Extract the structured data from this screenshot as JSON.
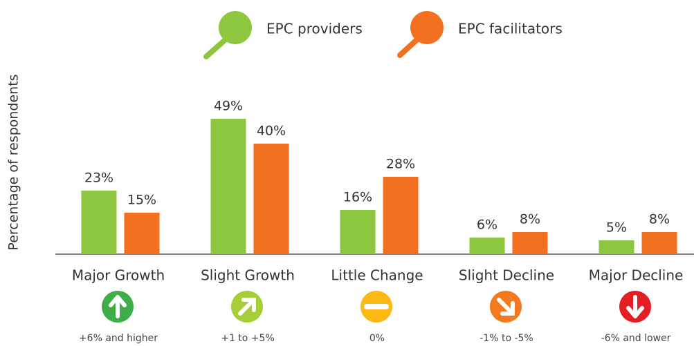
{
  "chart_data": {
    "type": "bar",
    "y_label": "Percentage of respondents",
    "categories": [
      "Major Growth",
      "Slight Growth",
      "Little Change",
      "Slight Decline",
      "Major Decline"
    ],
    "category_notes": [
      "+6% and higher",
      "+1 to +5%",
      "0%",
      "-1% to -5%",
      "-6% and lower"
    ],
    "series": [
      {
        "name": "EPC providers",
        "color": "#8dc63f",
        "values": [
          23,
          49,
          16,
          6,
          5
        ],
        "value_labels": [
          "23%",
          "49%",
          "16%",
          "6%",
          "5%"
        ]
      },
      {
        "name": "EPC facilitators",
        "color": "#f37021",
        "values": [
          15,
          40,
          28,
          8,
          8
        ],
        "value_labels": [
          "15%",
          "40%",
          "28%",
          "8%",
          "8%"
        ]
      }
    ],
    "ylim": [
      0,
      50
    ]
  }
}
